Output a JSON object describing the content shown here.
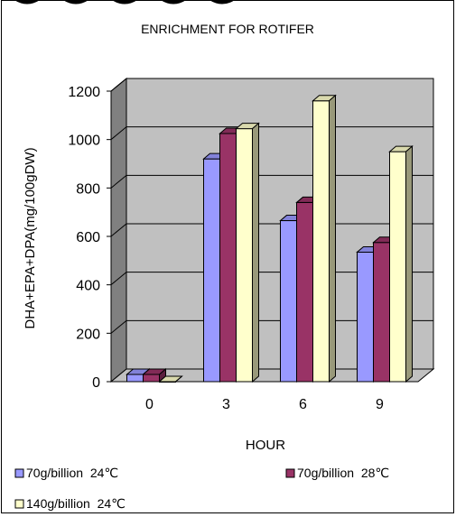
{
  "chart_data": {
    "type": "bar",
    "title": "ENRICHMENT FOR ROTIFER",
    "xlabel": "HOUR",
    "ylabel": "DHA+EPA+DPA(mg/100gDW)",
    "categories": [
      "0",
      "3",
      "6",
      "9"
    ],
    "ylim": [
      0,
      1200
    ],
    "yticks": [
      0,
      200,
      400,
      600,
      800,
      1000,
      1200
    ],
    "grid": true,
    "three_d": true,
    "legend_position": "bottom",
    "series": [
      {
        "name": "70g/billion  24℃",
        "values": [
          30,
          920,
          665,
          535
        ],
        "color": "#9999ff"
      },
      {
        "name": "70g/billion  28℃",
        "values": [
          30,
          1025,
          740,
          575
        ],
        "color": "#993366"
      },
      {
        "name": "140g/billion  24℃",
        "values": [
          0,
          1045,
          1160,
          950
        ],
        "color": "#ffffcc"
      }
    ]
  }
}
